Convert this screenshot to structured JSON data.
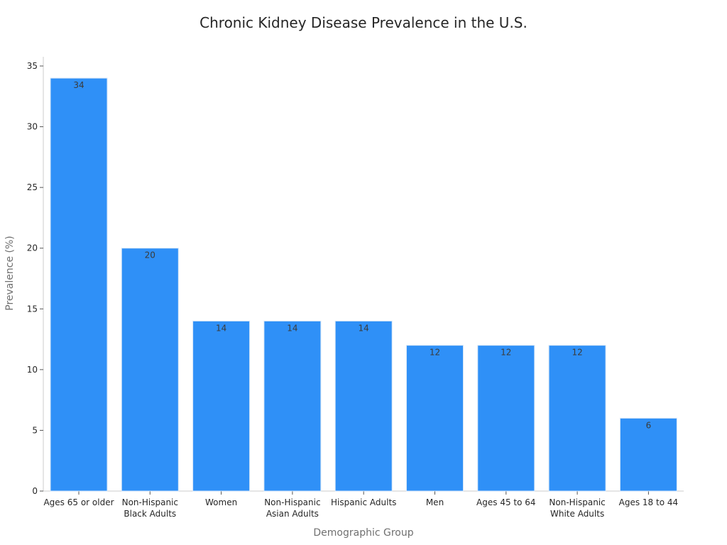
{
  "chart_data": {
    "type": "bar",
    "title": "Chronic Kidney Disease Prevalence in the U.S.",
    "xlabel": "Demographic Group",
    "ylabel": "Prevalence (%)",
    "categories": [
      [
        "Ages 65 or older"
      ],
      [
        "Non-Hispanic",
        "Black Adults"
      ],
      [
        "Women"
      ],
      [
        "Non-Hispanic",
        "Asian Adults"
      ],
      [
        "Hispanic Adults"
      ],
      [
        "Men"
      ],
      [
        "Ages 45 to 64"
      ],
      [
        "Non-Hispanic",
        "White Adults"
      ],
      [
        "Ages 18 to 44"
      ]
    ],
    "values": [
      34,
      20,
      14,
      14,
      14,
      12,
      12,
      12,
      6
    ],
    "ylim": [
      0,
      35
    ],
    "yticks": [
      0,
      5,
      10,
      15,
      20,
      25,
      30,
      35
    ],
    "bar_color": "#2f90f7",
    "grid": false,
    "legend": "none"
  }
}
